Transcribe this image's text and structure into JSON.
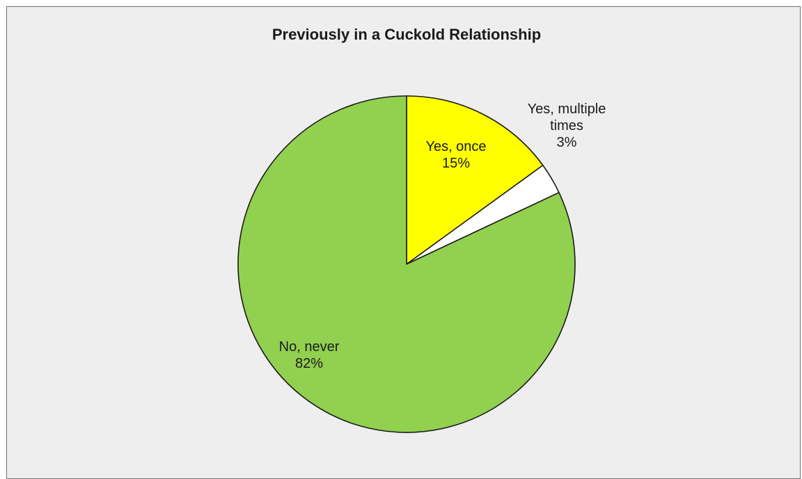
{
  "chart_data": {
    "type": "pie",
    "title": "Previously in a Cuckold Relationship",
    "slices": [
      {
        "label": "Yes, once",
        "value": 15,
        "value_label": "15%",
        "color": "#ffff00"
      },
      {
        "label": "Yes, multiple times",
        "value": 3,
        "value_label": "3%",
        "color": "#ffffff"
      },
      {
        "label": "No, never",
        "value": 82,
        "value_label": "82%",
        "color": "#92d050"
      }
    ],
    "start_angle": "12 o'clock",
    "direction": "clockwise",
    "border_color": "#1a1a1a",
    "background_color": "#eeeeee"
  }
}
